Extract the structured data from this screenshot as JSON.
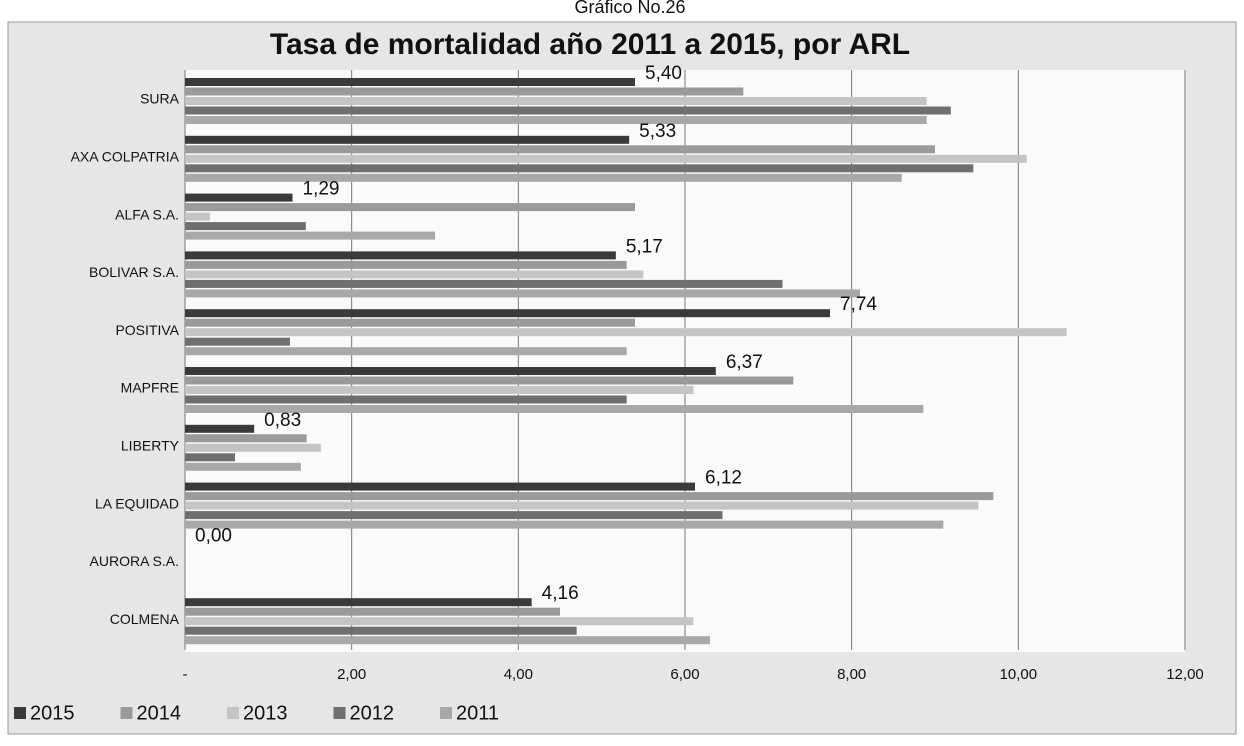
{
  "chart_data": {
    "type": "hbar",
    "caption": "Gráfico No.26",
    "title": "Tasa de mortalidad año 2011 a 2015, por ARL",
    "categories": [
      "SURA",
      "AXA COLPATRIA",
      "ALFA S.A.",
      "BOLIVAR S.A.",
      "POSITIVA",
      "MAPFRE",
      "LIBERTY",
      "LA EQUIDAD",
      "AURORA S.A.",
      "COLMENA"
    ],
    "series": [
      {
        "name": "2015",
        "color": "#3a3a3a",
        "values": [
          5.4,
          5.33,
          1.29,
          5.17,
          7.74,
          6.37,
          0.83,
          6.12,
          0.0,
          4.16
        ],
        "value_labels": [
          "5,40",
          "5,33",
          "1,29",
          "5,17",
          "7,74",
          "6,37",
          "0,83",
          "6,12",
          "0,00",
          "4,16"
        ]
      },
      {
        "name": "2014",
        "color": "#9a9a9a",
        "values": [
          6.7,
          9.0,
          5.4,
          5.3,
          5.4,
          7.3,
          1.46,
          9.7,
          0,
          4.5
        ]
      },
      {
        "name": "2013",
        "color": "#c4c4c4",
        "values": [
          8.9,
          10.1,
          0.3,
          5.5,
          10.58,
          6.1,
          1.63,
          9.52,
          0,
          6.1
        ]
      },
      {
        "name": "2012",
        "color": "#6f6f6f",
        "values": [
          9.19,
          9.46,
          1.45,
          7.17,
          1.26,
          5.3,
          0.6,
          6.45,
          0,
          4.7
        ]
      },
      {
        "name": "2011",
        "color": "#a8a8a8",
        "values": [
          8.9,
          8.6,
          3.0,
          8.1,
          5.3,
          8.86,
          1.39,
          9.1,
          0,
          6.3
        ]
      }
    ],
    "xlim": [
      0,
      12
    ],
    "xticks": [
      {
        "value": 0,
        "label": "-"
      },
      {
        "value": 2,
        "label": "2,00"
      },
      {
        "value": 4,
        "label": "4,00"
      },
      {
        "value": 6,
        "label": "6,00"
      },
      {
        "value": 8,
        "label": "8,00"
      },
      {
        "value": 10,
        "label": "10,00"
      },
      {
        "value": 12,
        "label": "12,00"
      }
    ],
    "grid": true,
    "legend": "bottom-left"
  }
}
